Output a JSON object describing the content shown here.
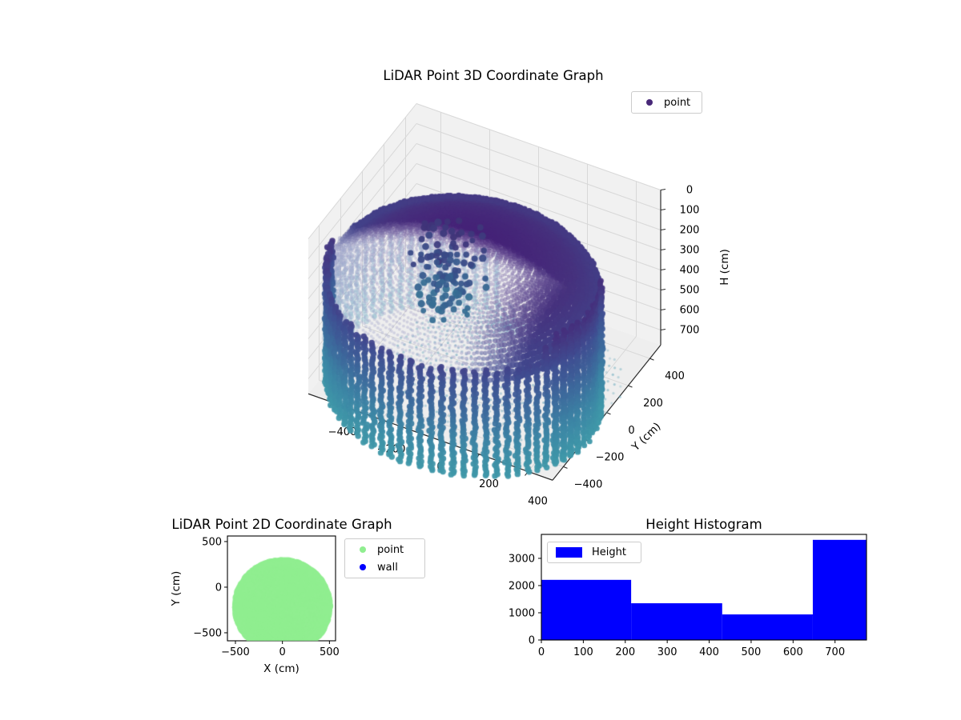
{
  "figure": {
    "background": "#ffffff"
  },
  "chart_data": [
    {
      "type": "scatter3d",
      "title": "LiDAR Point 3D Coordinate Graph",
      "legend": [
        {
          "label": "point",
          "color": "#482878"
        }
      ],
      "x_axis": {
        "ticks": [
          -400,
          -200,
          0,
          200,
          400
        ]
      },
      "y_axis": {
        "label": "Y (cm)",
        "ticks": [
          400,
          200,
          0,
          -200,
          -400
        ]
      },
      "h_axis": {
        "label": "H (cm)",
        "ticks": [
          0,
          100,
          200,
          300,
          400,
          500,
          600,
          700
        ]
      },
      "xlim": [
        -500,
        500
      ],
      "ylim": [
        -500,
        500
      ],
      "hlim": [
        0,
        775
      ],
      "h_axis_direction": "increasing downward",
      "structure": {
        "description": "cylindrical LiDAR room scan: dark dome cap at low H, vertical wall point columns down to H=775, faint interior floor spiral, scattered obstacle cluster upper-left",
        "cylinder_center_xy": [
          0,
          -190
        ],
        "cylinder_radius": 515,
        "dome_h_top": 30,
        "dome_h_edge": 245,
        "wall_h_bottom": 775,
        "wall_column_step_deg": 4.6,
        "color_by": "H",
        "colormap_stops": [
          [
            0,
            "#451d75"
          ],
          [
            150,
            "#46327e"
          ],
          [
            300,
            "#3f4f92"
          ],
          [
            450,
            "#3d699c"
          ],
          [
            600,
            "#3c84a4"
          ],
          [
            775,
            "#3f98a9"
          ]
        ]
      }
    },
    {
      "type": "scatter",
      "title": "LiDAR Point 2D Coordinate Graph",
      "xlabel": "X (cm)",
      "ylabel": "Y (cm)",
      "xticks": [
        -500,
        0,
        500
      ],
      "yticks": [
        500,
        0,
        -500
      ],
      "xlim": [
        -585,
        565
      ],
      "ylim": [
        -588,
        561
      ],
      "legend": [
        {
          "label": "point",
          "color": "#90ee90"
        },
        {
          "label": "wall",
          "color": "#0000ff"
        }
      ],
      "blob": {
        "center": [
          0,
          -210
        ],
        "radius": 497,
        "color": "#90ee90"
      }
    },
    {
      "type": "histogram",
      "title": "Height Histogram",
      "legend": [
        {
          "label": "Height",
          "color": "#0000ff"
        }
      ],
      "bin_edges": [
        0,
        214,
        431,
        647,
        775
      ],
      "counts": [
        2210,
        1350,
        940,
        3680
      ],
      "xticks": [
        0,
        100,
        200,
        300,
        400,
        500,
        600,
        700
      ],
      "yticks": [
        0,
        1000,
        2000,
        3000
      ],
      "xlim": [
        0,
        775
      ],
      "ylim": [
        0,
        3880
      ],
      "bar_color": "#0000ff"
    }
  ]
}
